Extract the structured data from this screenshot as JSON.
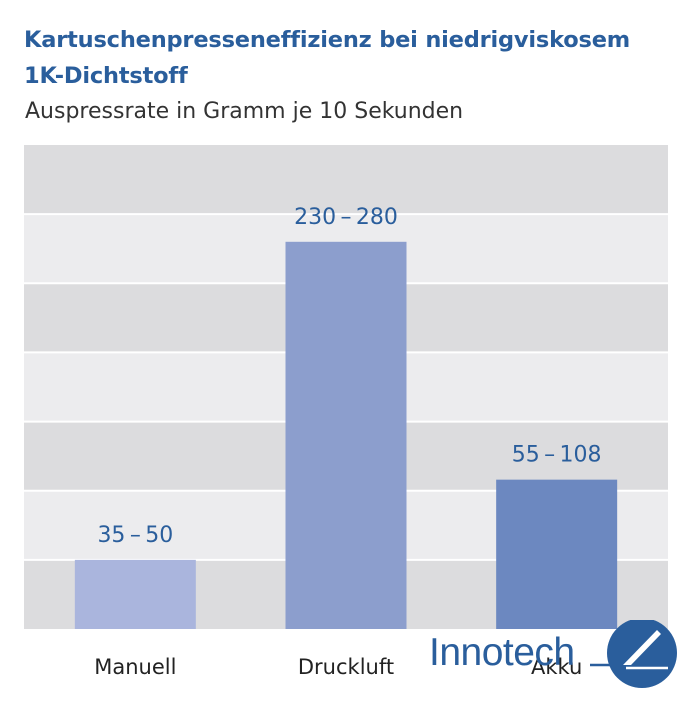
{
  "chart_data": {
    "type": "bar",
    "title": "Kartuschenpresseneffizienz bei niedrigviskosem 1K-Dichtstoff",
    "subtitle": "Auspressrate in Gramm je 10 Sekunden",
    "categories": [
      "Manuell",
      "Druckluft",
      "Akku"
    ],
    "ranges": [
      [
        35,
        50
      ],
      [
        230,
        280
      ],
      [
        55,
        108
      ]
    ],
    "values": [
      50,
      280,
      108
    ],
    "data_labels": [
      "35 – 50",
      "230 – 280",
      "55 – 108"
    ],
    "bar_colors": [
      "#aab5dd",
      "#8c9ecd",
      "#6c88c0"
    ],
    "ylim": [
      0,
      350
    ],
    "grid": "alternating bands",
    "band_colors": [
      "#dcdcde",
      "#ececee"
    ],
    "label_color": "#2a5e9c",
    "xlabel": "",
    "ylabel": ""
  },
  "logo": {
    "text": "Innotech",
    "color": "#2a5e9c"
  }
}
